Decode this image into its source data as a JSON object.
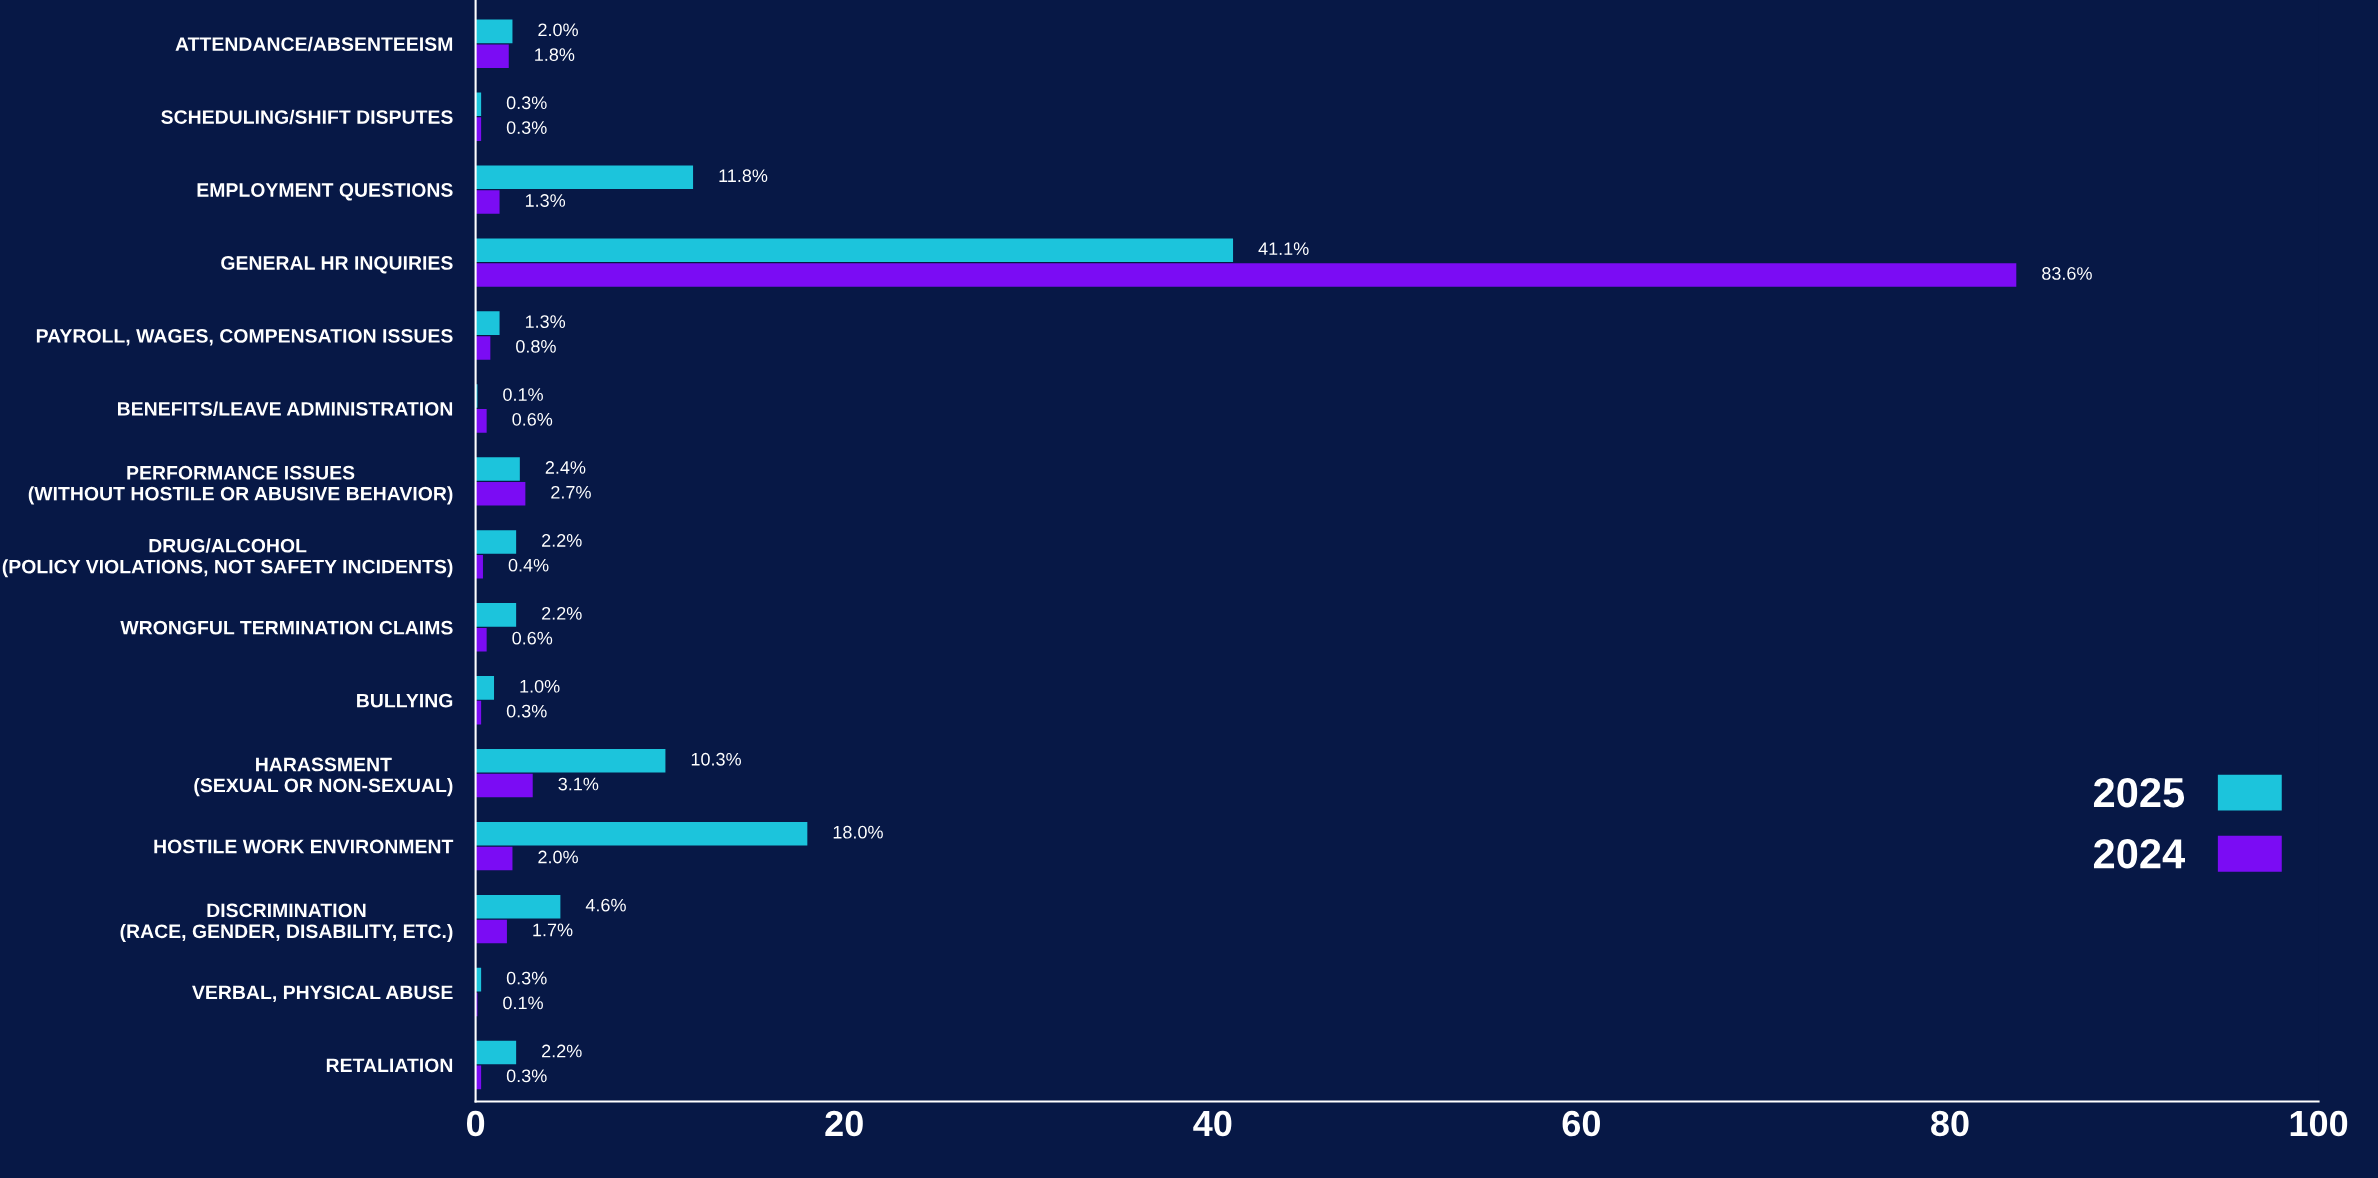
{
  "chart_data": {
    "type": "bar",
    "orientation": "horizontal",
    "categories": [
      "ATTENDANCE/ABSENTEEISM",
      "SCHEDULING/SHIFT DISPUTES",
      "EMPLOYMENT QUESTIONS",
      "GENERAL HR INQUIRIES",
      "PAYROLL, WAGES, COMPENSATION ISSUES",
      "BENEFITS/LEAVE ADMINISTRATION",
      "PERFORMANCE ISSUES\n(WITHOUT HOSTILE OR ABUSIVE BEHAVIOR)",
      "DRUG/ALCOHOL\n(POLICY VIOLATIONS, NOT SAFETY INCIDENTS)",
      "WRONGFUL TERMINATION CLAIMS",
      "BULLYING",
      "HARASSMENT\n(SEXUAL OR NON-SEXUAL)",
      "HOSTILE WORK ENVIRONMENT",
      "DISCRIMINATION\n(RACE, GENDER, DISABILITY, ETC.)",
      "VERBAL, PHYSICAL ABUSE",
      "RETALIATION"
    ],
    "series": [
      {
        "name": "2025",
        "color": "#1cc4dc",
        "values": [
          2.0,
          0.3,
          11.8,
          41.1,
          1.3,
          0.1,
          2.4,
          2.2,
          2.2,
          1.0,
          10.3,
          18.0,
          4.6,
          0.3,
          2.2
        ],
        "value_labels": [
          "2.0%",
          "0.3%",
          "11.8%",
          "41.1%",
          "1.3%",
          "0.1%",
          "2.4%",
          "2.2%",
          "2.2%",
          "1.0%",
          "10.3%",
          "18.0%",
          "4.6%",
          "0.3%",
          "2.2%"
        ]
      },
      {
        "name": "2024",
        "color": "#7b0cf4",
        "values": [
          1.8,
          0.3,
          1.3,
          83.6,
          0.8,
          0.6,
          2.7,
          0.4,
          0.6,
          0.3,
          3.1,
          2.0,
          1.7,
          0.1,
          0.3
        ],
        "value_labels": [
          "1.8%",
          "0.3%",
          "1.3%",
          "83.6%",
          "0.8%",
          "0.6%",
          "2.7%",
          "0.4%",
          "0.6%",
          "0.3%",
          "3.1%",
          "2.0%",
          "1.7%",
          "0.1%",
          "0.3%"
        ]
      }
    ],
    "xlim": [
      0,
      100
    ],
    "xticks": [
      0,
      20,
      40,
      60,
      80,
      100
    ],
    "grid": false,
    "legend": "right"
  }
}
